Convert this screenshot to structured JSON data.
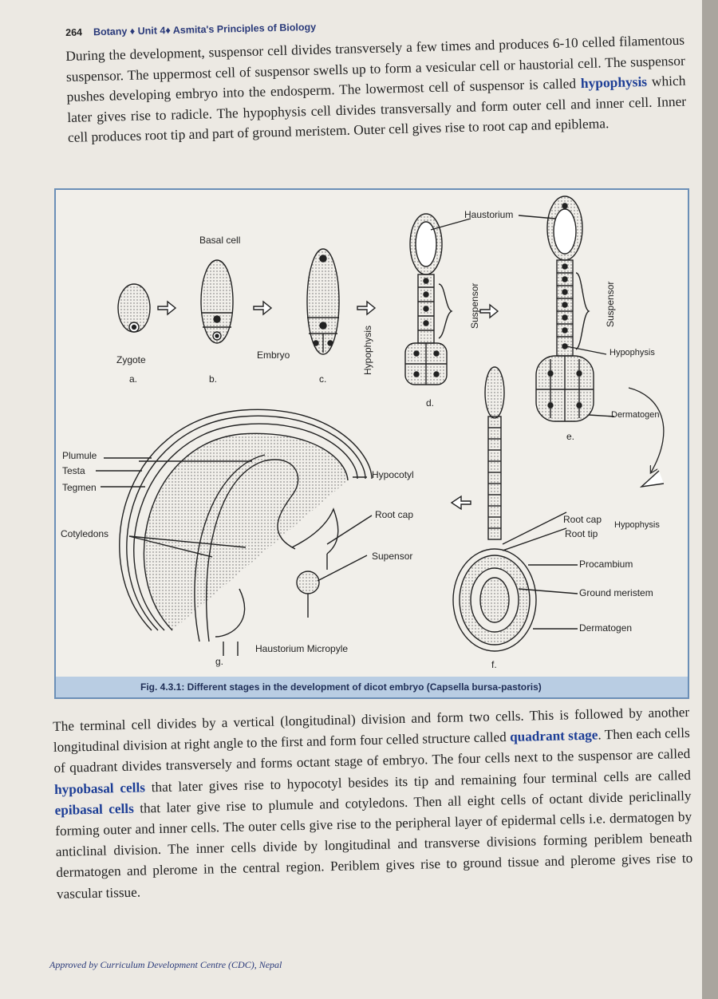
{
  "header": {
    "page_number": "264",
    "title": "Botany ♦ Unit 4♦ Asmita's Principles of Biology"
  },
  "paragraph1": {
    "s1": "During the development, suspensor cell divides transversely a few times and produces 6-10 celled filamentous suspensor. The uppermost cell of suspensor swells up to form a vesicular cell or haustorial cell. The suspensor pushes developing embryo into the endosperm. The lowermost cell of suspensor is called ",
    "k1": "hypophysis",
    "s2": " which later gives rise to radicle. The hypophysis cell divides transversally and form outer cell and inner cell. Inner cell produces root tip and part of ground meristem. Outer cell gives rise to root cap and epiblema."
  },
  "figure": {
    "labels": {
      "basal_cell": "Basal cell",
      "zygote": "Zygote",
      "embryo": "Embryo",
      "hypophysis_vertical": "Hypophysis",
      "haustorium": "Haustorium",
      "suspensor_vertical_d": "Suspensor",
      "suspensor_vertical_e": "Suspensor",
      "hypophysis_e": "Hypophysis",
      "dermatogen_e": "Dermatogen",
      "a": "a.",
      "b": "b.",
      "c": "c.",
      "d": "d.",
      "e": "e.",
      "f": "f.",
      "g": "g.",
      "plumule": "Plumule",
      "testa": "Testa",
      "tegmen": "Tegmen",
      "cotyledons": "Cotyledons",
      "hypocotyl": "Hypocotyl",
      "root_cap_g": "Root cap",
      "supensor_g": "Supensor",
      "haustorium_micropyle": "Haustorium Micropyle",
      "root_cap_f": "Root cap",
      "root_tip_f": "Root tip",
      "hypophysis_f": "Hypophysis",
      "procambium": "Procambium",
      "ground_meristem": "Ground meristem",
      "dermatogen_f": "Dermatogen"
    },
    "caption": "Fig. 4.3.1: Different stages in the development of dicot embryo (Capsella bursa-pastoris)"
  },
  "paragraph2": {
    "s1": "The terminal cell divides by a vertical (longitudinal) division and form two cells. This is followed by another longitudinal division at right angle to the first and form four celled structure called ",
    "k1": "quadrant stage",
    "s2": ". Then each cells of quadrant divides transversely and forms octant stage of embryo. The four cells next to the suspensor are called ",
    "k2": "hypobasal cells",
    "s3": " that later gives rise to hypocotyl besides its tip and remaining four terminal cells are called ",
    "k3": "epibasal cells",
    "s4": " that later give rise to plumule and cotyledons. Then all eight cells of octant divide periclinally forming outer and inner cells. The outer cells give rise to the peripheral layer of epidermal cells i.e. dermatogen by anticlinal division. The inner cells divide by longitudinal and transverse divisions forming periblem beneath dermatogen and plerome in the central region. Periblem gives rise to ground tissue and plerome gives rise to vascular tissue."
  },
  "footer": "Approved by Curriculum Development Centre (CDC), Nepal"
}
